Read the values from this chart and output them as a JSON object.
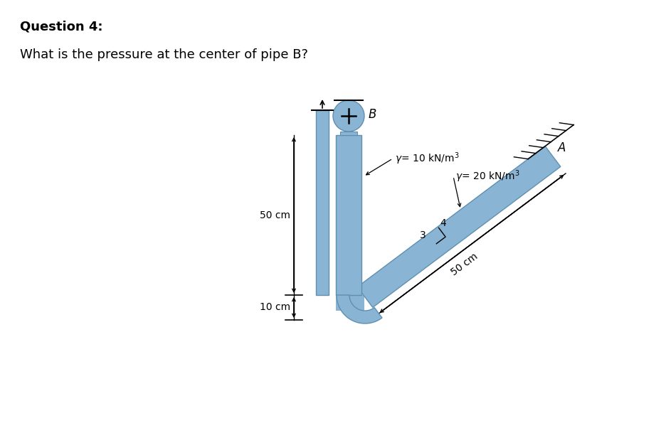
{
  "title_bold": "Question 4:",
  "subtitle": "What is the pressure at the center of pipe B?",
  "pipe_color": "#8ab4d4",
  "pipe_edge_color": "#6090b0",
  "background_color": "#ffffff",
  "label_50cm_top": "50 cm",
  "label_10cm": "10 cm",
  "label_50cm_diag": "50 cm",
  "label_gamma1": "γ= 10 kN/m³",
  "label_gamma2": "γ= 20 kN/m³",
  "label_B": "B",
  "label_A": "A",
  "label_3": "3",
  "label_4": "4"
}
